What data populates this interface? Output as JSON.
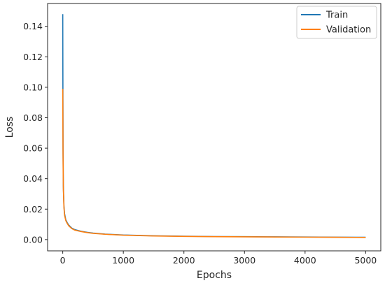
{
  "chart_data": {
    "type": "line",
    "title": "",
    "xlabel": "Epochs",
    "ylabel": "Loss",
    "xlim": [
      -250,
      5250
    ],
    "ylim": [
      -0.0074,
      0.155
    ],
    "xticks": [
      0,
      1000,
      2000,
      3000,
      4000,
      5000
    ],
    "xtick_labels": [
      "0",
      "1000",
      "2000",
      "3000",
      "4000",
      "5000"
    ],
    "yticks": [
      0.0,
      0.02,
      0.04,
      0.06,
      0.08,
      0.1,
      0.12,
      0.14
    ],
    "ytick_labels": [
      "0.00",
      "0.02",
      "0.04",
      "0.06",
      "0.08",
      "0.10",
      "0.12",
      "0.14"
    ],
    "grid": false,
    "legend_position": "top-right",
    "series": [
      {
        "name": "Train",
        "color": "#1f77b4",
        "x": [
          0,
          5,
          10,
          20,
          30,
          50,
          75,
          100,
          150,
          200,
          300,
          400,
          500,
          700,
          1000,
          1500,
          2000,
          2500,
          3000,
          3500,
          4000,
          4500,
          5000
        ],
        "y": [
          0.148,
          0.06,
          0.035,
          0.022,
          0.017,
          0.013,
          0.011,
          0.0095,
          0.0075,
          0.0065,
          0.0055,
          0.0048,
          0.0043,
          0.0036,
          0.003,
          0.0025,
          0.0022,
          0.002,
          0.0019,
          0.0018,
          0.0017,
          0.0016,
          0.0015
        ]
      },
      {
        "name": "Validation",
        "color": "#ff7f0e",
        "x": [
          0,
          5,
          10,
          20,
          30,
          50,
          75,
          100,
          150,
          200,
          300,
          400,
          500,
          700,
          1000,
          1500,
          2000,
          2500,
          3000,
          3500,
          4000,
          4500,
          5000
        ],
        "y": [
          0.099,
          0.055,
          0.033,
          0.021,
          0.016,
          0.0125,
          0.0105,
          0.009,
          0.0072,
          0.0062,
          0.0053,
          0.0046,
          0.0041,
          0.0035,
          0.0029,
          0.0024,
          0.0021,
          0.0019,
          0.0018,
          0.0017,
          0.0016,
          0.0015,
          0.0014
        ]
      }
    ]
  }
}
